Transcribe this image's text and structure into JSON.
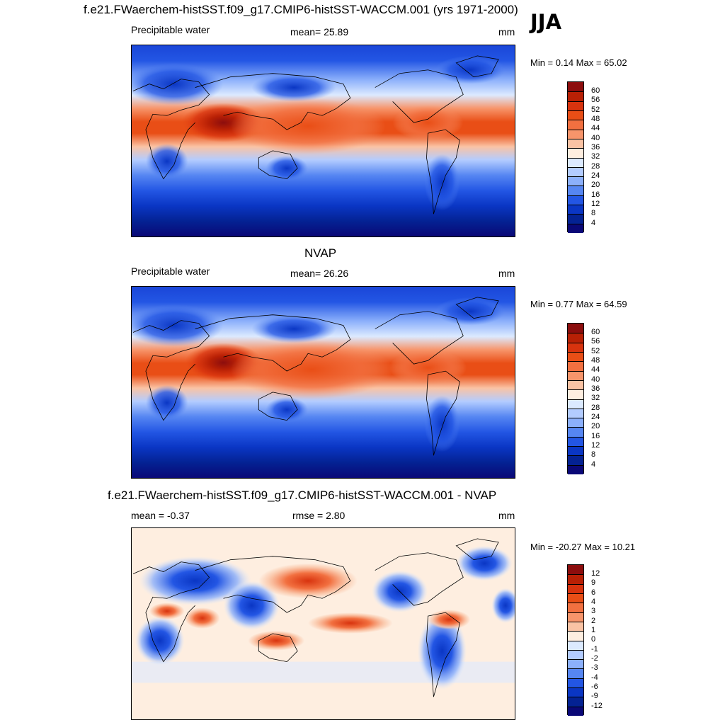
{
  "figure": {
    "title": "f.e21.FWaerchem-histSST.f09_g17.CMIP6-histSST-WACCM.001 (yrs 1971-2000)",
    "season": "JJA"
  },
  "panels": [
    {
      "title": "",
      "left_label": "Precipitable water",
      "center_label": "mean=  25.89",
      "units": "mm",
      "minmax": "Min =   0.14 Max =  65.02",
      "colorbar": {
        "levels": [
          "60",
          "56",
          "52",
          "48",
          "44",
          "40",
          "36",
          "32",
          "28",
          "24",
          "20",
          "16",
          "12",
          "8",
          "4"
        ],
        "colors": [
          "#8c0d0d",
          "#b82005",
          "#d8330e",
          "#e94e16",
          "#f27040",
          "#f7956b",
          "#fac3a4",
          "#feeee0",
          "#dceaff",
          "#b3ccff",
          "#8cb0fb",
          "#5686f2",
          "#2356e4",
          "#0a36c4",
          "#042293",
          "#0a0877"
        ]
      }
    },
    {
      "title": "NVAP",
      "left_label": "Precipitable water",
      "center_label": "mean=  26.26",
      "units": "mm",
      "minmax": "Min =   0.77 Max =  64.59",
      "colorbar": {
        "levels": [
          "60",
          "56",
          "52",
          "48",
          "44",
          "40",
          "36",
          "32",
          "28",
          "24",
          "20",
          "16",
          "12",
          "8",
          "4"
        ],
        "colors": [
          "#8c0d0d",
          "#b82005",
          "#d8330e",
          "#e94e16",
          "#f27040",
          "#f7956b",
          "#fac3a4",
          "#feeee0",
          "#dceaff",
          "#b3ccff",
          "#8cb0fb",
          "#5686f2",
          "#2356e4",
          "#0a36c4",
          "#042293",
          "#0a0877"
        ]
      }
    },
    {
      "title": "f.e21.FWaerchem-histSST.f09_g17.CMIP6-histSST-WACCM.001 - NVAP",
      "left_label": "mean =  -0.37",
      "center_label": "rmse =   2.80",
      "units": "mm",
      "minmax": "Min = -20.27 Max =  10.21",
      "colorbar": {
        "levels": [
          "12",
          "9",
          "6",
          "4",
          "3",
          "2",
          "1",
          "0",
          "-1",
          "-2",
          "-3",
          "-4",
          "-6",
          "-9",
          "-12"
        ],
        "colors": [
          "#8c0d0d",
          "#b82005",
          "#d8330e",
          "#e94e16",
          "#f27040",
          "#f7956b",
          "#fac3a4",
          "#feeee0",
          "#dceaff",
          "#b3ccff",
          "#8cb0fb",
          "#5686f2",
          "#2356e4",
          "#0a36c4",
          "#042293",
          "#0a0877"
        ]
      }
    }
  ]
}
